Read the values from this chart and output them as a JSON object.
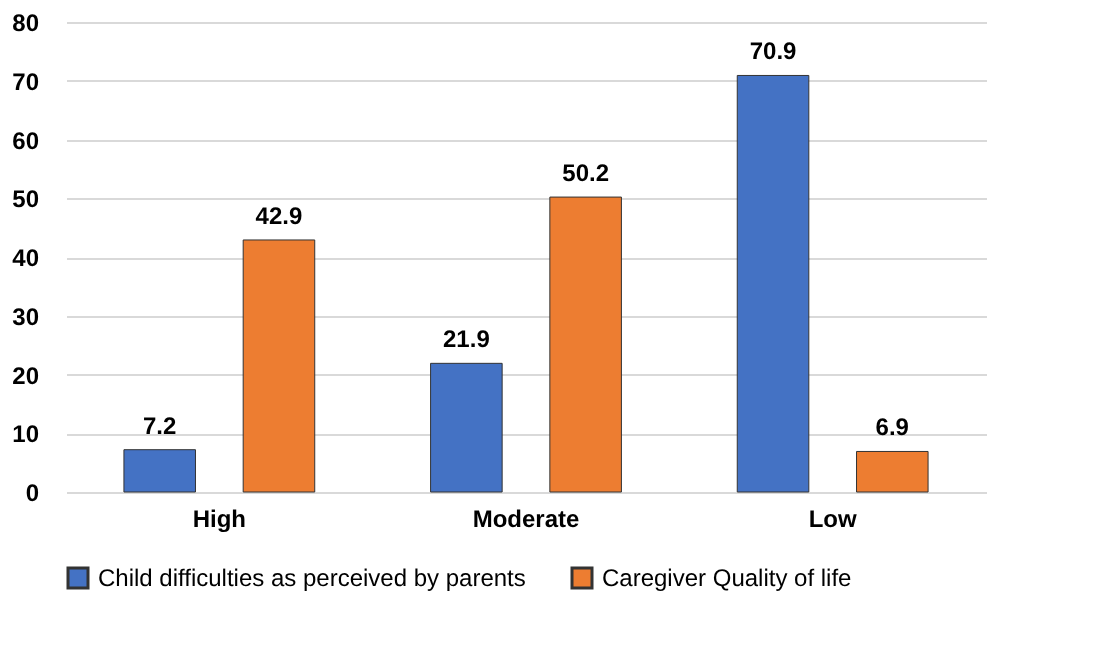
{
  "chart_data": {
    "type": "bar",
    "categories": [
      "High",
      "Moderate",
      "Low"
    ],
    "series": [
      {
        "name": "Child difficulties as perceived by parents",
        "color": "#4472c4",
        "values": [
          7.2,
          21.9,
          70.9
        ]
      },
      {
        "name": "Caregiver Quality of life",
        "color": "#ed7d31",
        "values": [
          42.9,
          50.2,
          6.9
        ]
      }
    ],
    "ylim": [
      0,
      80
    ],
    "yticks": [
      0,
      10,
      20,
      30,
      40,
      50,
      60,
      70,
      80
    ],
    "grid": "y",
    "legend": "bottom",
    "data_labels": true
  }
}
